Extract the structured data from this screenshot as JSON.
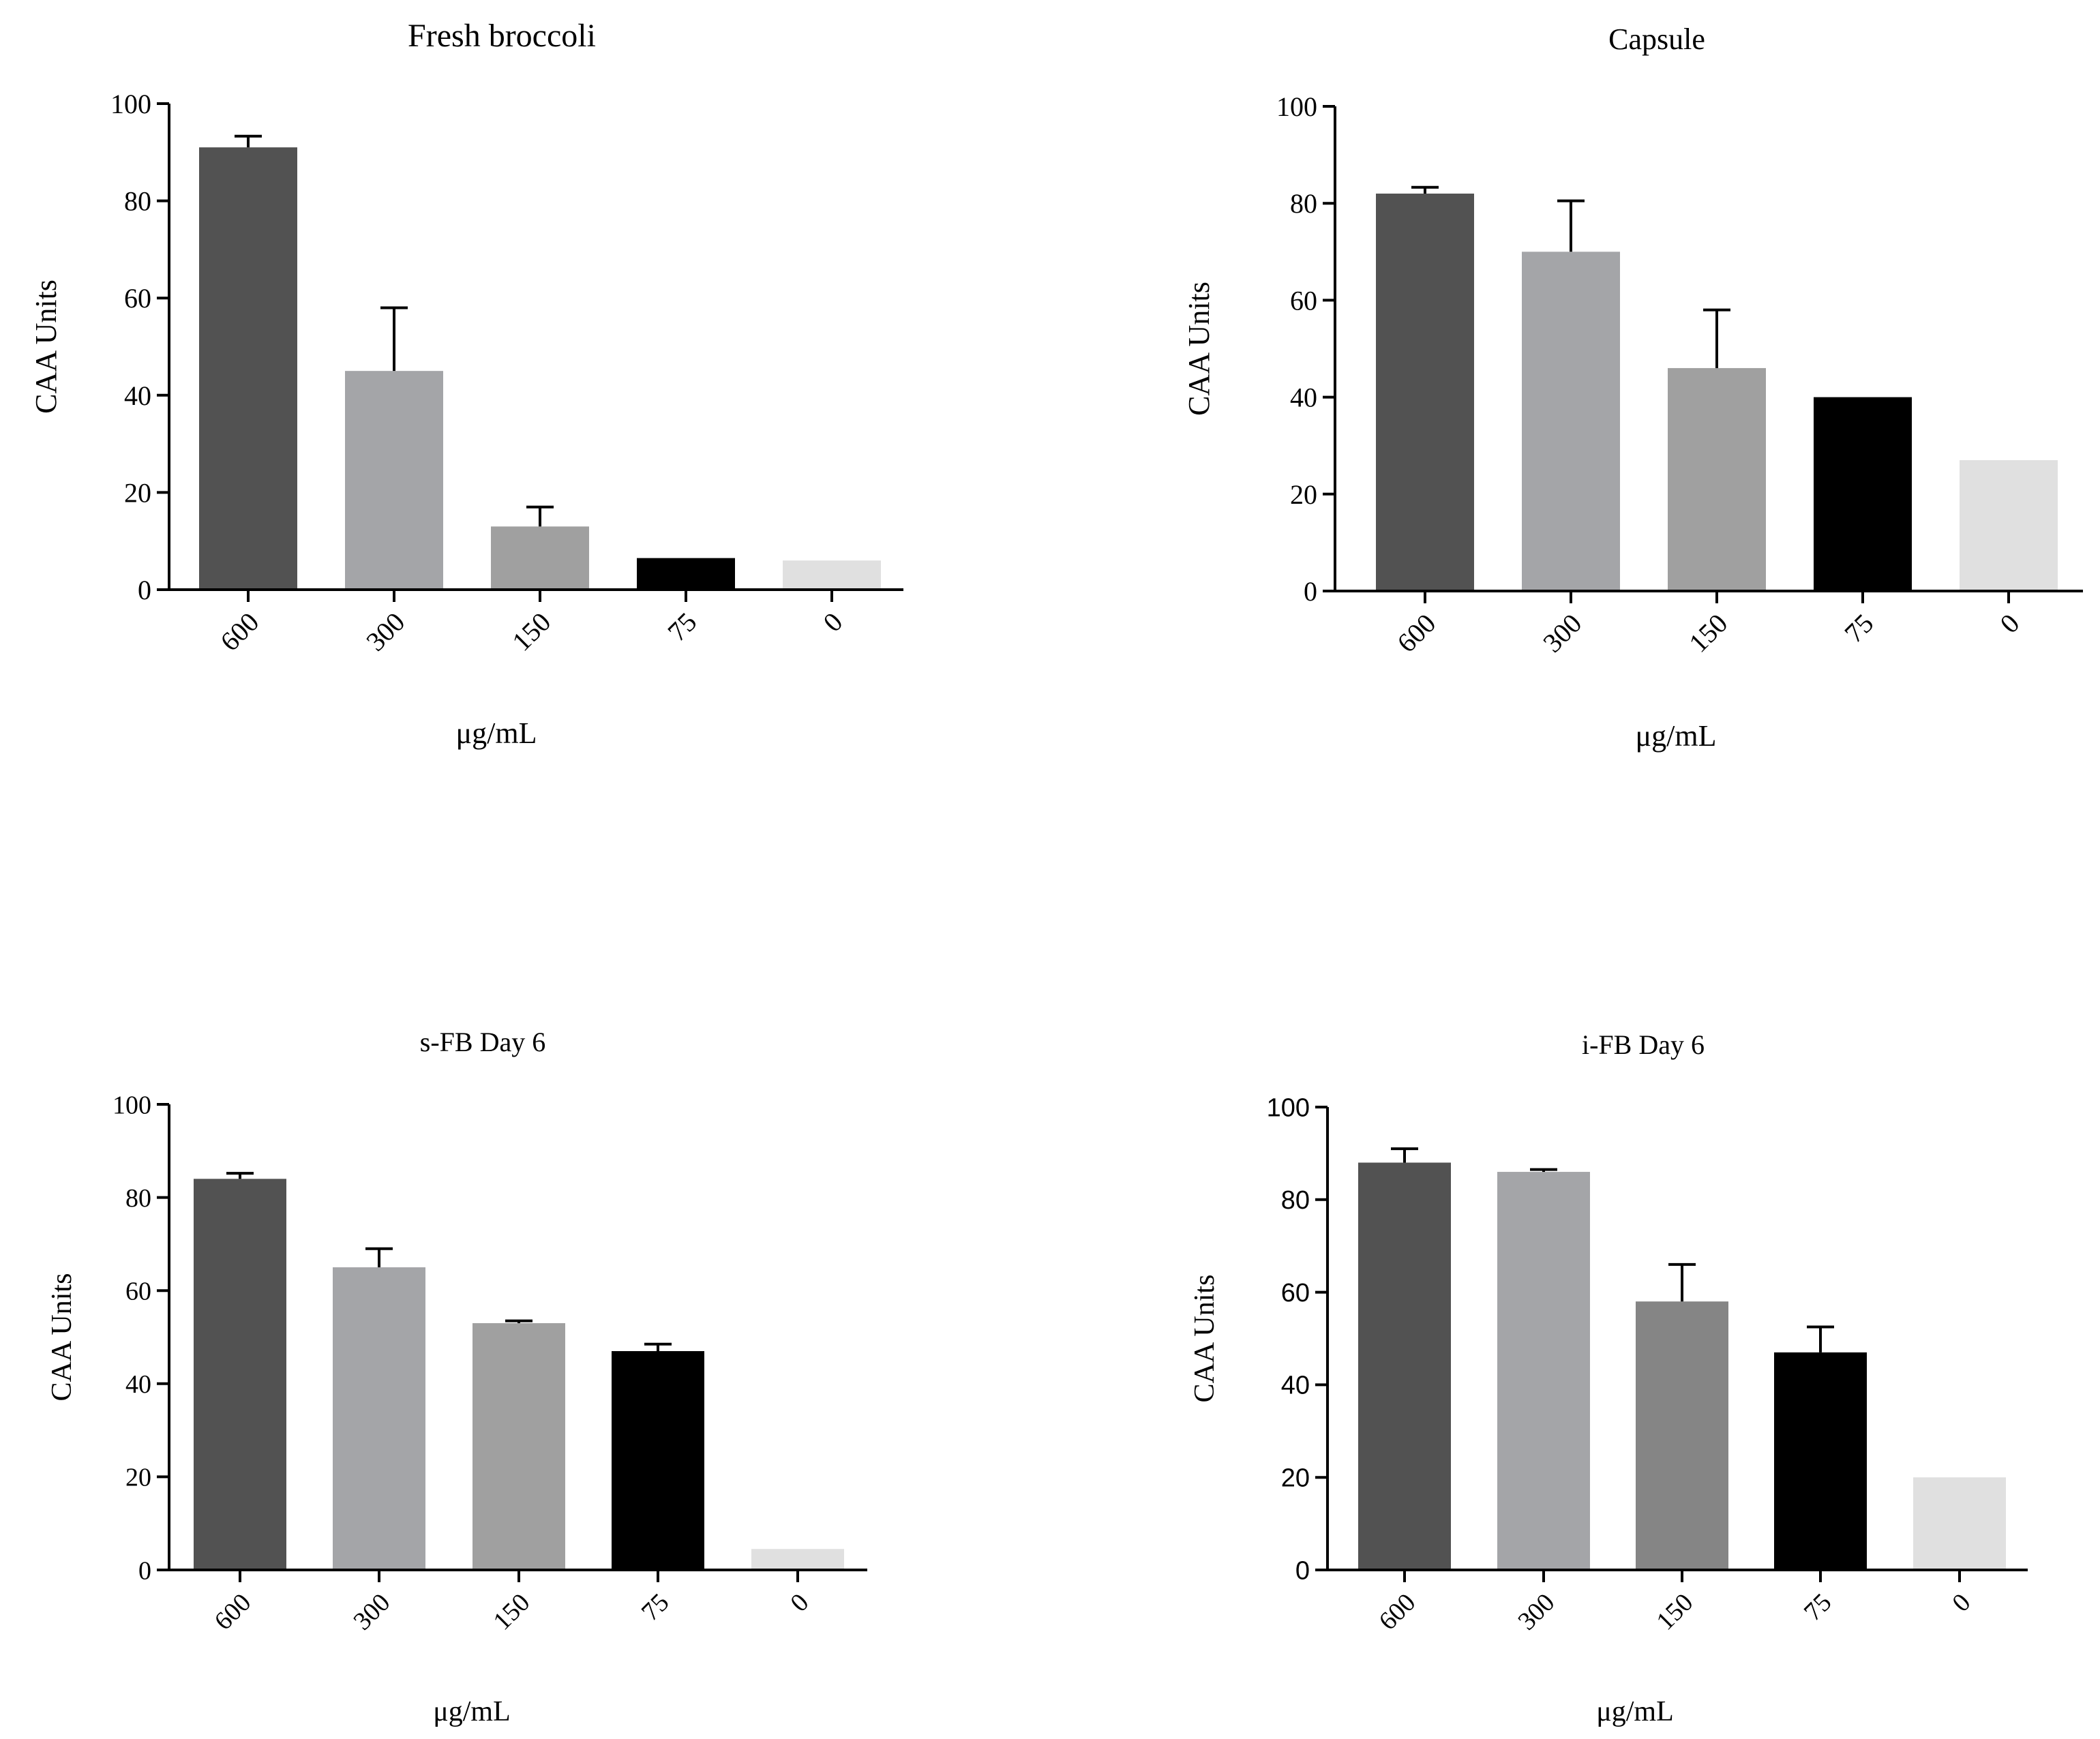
{
  "colors": {
    "bar_600": "#525252",
    "bar_300": "#a4a5a8",
    "bar_150": "#a0a0a0",
    "bar_150_ifb": "#858585",
    "bar_75": "#000000",
    "bar_0": "#e0e0e0",
    "axis": "#000000"
  },
  "chart_data": [
    {
      "type": "bar",
      "title": "Fresh broccoli",
      "xlabel": "μg/mL",
      "ylabel": "CAA Units",
      "categories": [
        "600",
        "300",
        "150",
        "75",
        "0"
      ],
      "values": [
        91,
        45,
        13,
        6.5,
        6
      ],
      "errors": [
        2.3,
        13,
        4,
        0,
        0
      ],
      "ylim": [
        0,
        100
      ],
      "yticks": [
        "0",
        "20",
        "40",
        "60",
        "80",
        "100"
      ],
      "bar_colors": [
        "#525252",
        "#a4a5a8",
        "#a0a0a0",
        "#000000",
        "#e0e0e0"
      ]
    },
    {
      "type": "bar",
      "title": "Capsule",
      "xlabel": "μg/mL",
      "ylabel": "CAA Units",
      "categories": [
        "600",
        "300",
        "150",
        "75",
        "0"
      ],
      "values": [
        82,
        70,
        46,
        40,
        27
      ],
      "errors": [
        1.3,
        10.5,
        12,
        0,
        0
      ],
      "ylim": [
        0,
        100
      ],
      "yticks": [
        "0",
        "20",
        "40",
        "60",
        "80",
        "100"
      ],
      "bar_colors": [
        "#525252",
        "#a4a5a8",
        "#a0a0a0",
        "#000000",
        "#e0e0e0"
      ]
    },
    {
      "type": "bar",
      "title": "s-FB Day 6",
      "xlabel": "μg/mL",
      "ylabel": "CAA Units",
      "categories": [
        "600",
        "300",
        "150",
        "75",
        "0"
      ],
      "values": [
        84,
        65,
        53,
        47,
        4.5
      ],
      "errors": [
        1.2,
        4,
        0.5,
        1.5,
        0
      ],
      "ylim": [
        0,
        100
      ],
      "yticks": [
        "0",
        "20",
        "40",
        "60",
        "80",
        "100"
      ],
      "bar_colors": [
        "#525252",
        "#a4a5a8",
        "#a0a0a0",
        "#000000",
        "#e0e0e0"
      ]
    },
    {
      "type": "bar",
      "title": "i-FB Day 6",
      "xlabel": "μg/mL",
      "ylabel": "CAA Units",
      "categories": [
        "600",
        "300",
        "150",
        "75",
        "0"
      ],
      "values": [
        88,
        86,
        58,
        47,
        20
      ],
      "errors": [
        3,
        0.5,
        8,
        5.5,
        0
      ],
      "ylim": [
        0,
        100
      ],
      "yticks": [
        "0",
        "20",
        "40",
        "60",
        "80",
        "100"
      ],
      "bar_colors": [
        "#525252",
        "#a4a5a8",
        "#858585",
        "#000000",
        "#e0e0e0"
      ]
    }
  ]
}
